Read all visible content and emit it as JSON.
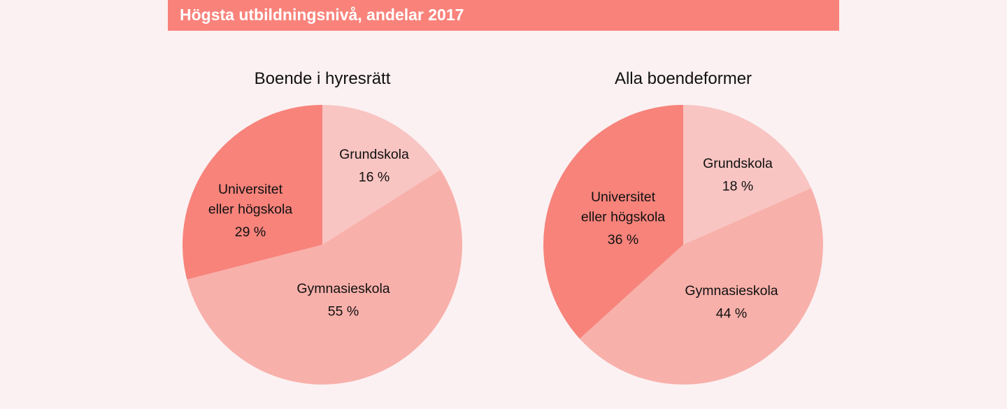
{
  "header": {
    "title": "Högsta utbildningsnivå, andelar 2017"
  },
  "colors": {
    "header": "#f9837b",
    "background": "#fbf1f2"
  },
  "chart_data": [
    {
      "type": "pie",
      "title": "Boende i hyresrätt",
      "slices": [
        {
          "label_lines": [
            "Grundskola"
          ],
          "value": 16,
          "value_label": "16 %",
          "color": "#f8c5c2"
        },
        {
          "label_lines": [
            "Gymnasieskola"
          ],
          "value": 55,
          "value_label": "55 %",
          "color": "#f8b0aa"
        },
        {
          "label_lines": [
            "Universitet",
            "eller högskola"
          ],
          "value": 29,
          "value_label": "29 %",
          "color": "#f7837b"
        }
      ]
    },
    {
      "type": "pie",
      "title": "Alla boendeformer",
      "slices": [
        {
          "label_lines": [
            "Grundskola"
          ],
          "value": 18,
          "value_label": "18 %",
          "color": "#f8c5c2"
        },
        {
          "label_lines": [
            "Gymnasieskola"
          ],
          "value": 44,
          "value_label": "44 %",
          "color": "#f8b0aa"
        },
        {
          "label_lines": [
            "Universitet",
            "eller högskola"
          ],
          "value": 36,
          "value_label": "36 %",
          "color": "#f7837b"
        }
      ]
    }
  ]
}
